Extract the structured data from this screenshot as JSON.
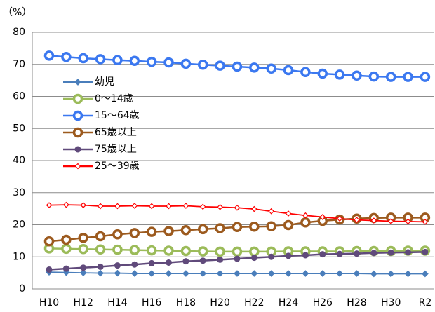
{
  "chart_data": {
    "type": "line",
    "y_label": "（%）",
    "categories": [
      "H10",
      null,
      "H12",
      null,
      "H14",
      null,
      "H16",
      null,
      "H18",
      null,
      "H20",
      null,
      "H22",
      null,
      "H24",
      null,
      "H26",
      null,
      "H28",
      null,
      "H30",
      null,
      "R2"
    ],
    "ylim": [
      0,
      80
    ],
    "yticks": [
      0,
      10,
      20,
      30,
      40,
      50,
      60,
      70,
      80
    ],
    "grid": true,
    "legend": "upper-left",
    "series": [
      {
        "name": "幼児",
        "color": "#4a7ebb",
        "marker": "diamond",
        "values": [
          5.2,
          5.1,
          5.0,
          4.9,
          4.9,
          4.8,
          4.8,
          4.8,
          4.8,
          4.8,
          4.8,
          4.8,
          4.8,
          4.8,
          4.8,
          4.8,
          4.8,
          4.8,
          4.8,
          4.7,
          4.7,
          4.7,
          4.7
        ]
      },
      {
        "name": "0～14歳",
        "color": "#9bbb59",
        "marker": "ring",
        "values": [
          12.6,
          12.5,
          12.4,
          12.3,
          12.2,
          12.1,
          12.0,
          11.9,
          11.8,
          11.7,
          11.6,
          11.6,
          11.6,
          11.6,
          11.7,
          11.7,
          11.7,
          11.7,
          11.8,
          11.8,
          11.8,
          11.9,
          11.9
        ]
      },
      {
        "name": "15～64歳",
        "color": "#3b78f0",
        "marker": "ring",
        "values": [
          72.7,
          72.3,
          71.9,
          71.6,
          71.3,
          71.1,
          70.8,
          70.6,
          70.2,
          69.9,
          69.6,
          69.3,
          69.0,
          68.7,
          68.2,
          67.6,
          67.1,
          66.8,
          66.5,
          66.2,
          66.1,
          66.1,
          66.1
        ]
      },
      {
        "name": "65歳以上",
        "color": "#9c5a1e",
        "marker": "ring",
        "values": [
          14.8,
          15.3,
          15.9,
          16.4,
          17.0,
          17.4,
          17.8,
          18.0,
          18.3,
          18.6,
          18.9,
          19.3,
          19.4,
          19.5,
          19.9,
          20.7,
          21.2,
          21.6,
          21.9,
          22.1,
          22.2,
          22.2,
          22.2
        ]
      },
      {
        "name": "75歳以上",
        "color": "#604a7b",
        "marker": "dot",
        "values": [
          6.0,
          6.3,
          6.6,
          6.9,
          7.3,
          7.6,
          8.0,
          8.2,
          8.6,
          8.8,
          9.1,
          9.4,
          9.7,
          10.0,
          10.3,
          10.5,
          10.8,
          10.9,
          11.0,
          11.2,
          11.3,
          11.4,
          11.5
        ]
      },
      {
        "name": "25～39歳",
        "color": "#ff0000",
        "marker": "small-diamond",
        "values": [
          26.1,
          26.2,
          26.1,
          25.8,
          25.8,
          25.9,
          25.8,
          25.8,
          25.9,
          25.6,
          25.5,
          25.3,
          24.9,
          24.2,
          23.5,
          22.9,
          22.4,
          21.9,
          21.5,
          21.3,
          21.1,
          21.0,
          20.9
        ]
      }
    ]
  }
}
